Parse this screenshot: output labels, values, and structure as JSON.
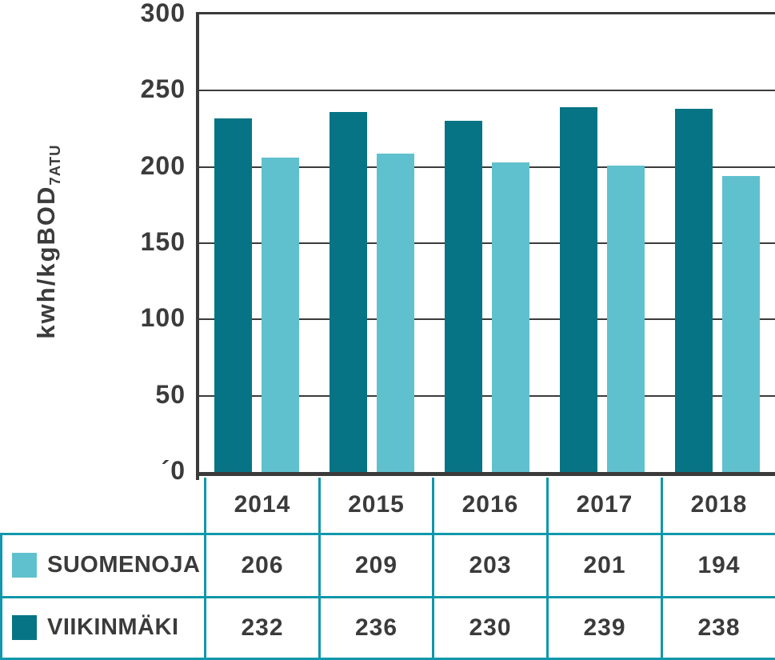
{
  "chart_data": {
    "type": "bar",
    "title": "",
    "categories": [
      "2014",
      "2015",
      "2016",
      "2017",
      "2018"
    ],
    "series": [
      {
        "name": "SUOMENOJA",
        "color": "#60c1ce",
        "values": [
          206,
          209,
          203,
          201,
          194
        ]
      },
      {
        "name": "VIIKINMÄKI",
        "color": "#067484",
        "values": [
          232,
          236,
          230,
          239,
          238
        ]
      }
    ],
    "bar_order": [
      "VIIKINMÄKI",
      "SUOMENOJA"
    ],
    "ylabel": "kwh/kgBOD",
    "ylabel_subscript": "7ATU",
    "xlabel": "",
    "ylim": [
      0,
      300
    ],
    "yticks": [
      {
        "label": "300",
        "value": 300
      },
      {
        "label": "250",
        "value": 250
      },
      {
        "label": "200",
        "value": 200
      },
      {
        "label": "150",
        "value": 150
      },
      {
        "label": "100",
        "value": 100
      },
      {
        "label": "50",
        "value": 50
      },
      {
        "label": "´0",
        "value": 0
      }
    ],
    "grid": "horizontal",
    "legend_position": "table-rows-below-chart"
  },
  "colors": {
    "axis": "#3b3b3b",
    "text": "#3b3b3b",
    "table_border": "#1097ab",
    "background": "#ffffff",
    "series_suomenoja": "#60c1ce",
    "series_viikinmaki": "#067484"
  }
}
